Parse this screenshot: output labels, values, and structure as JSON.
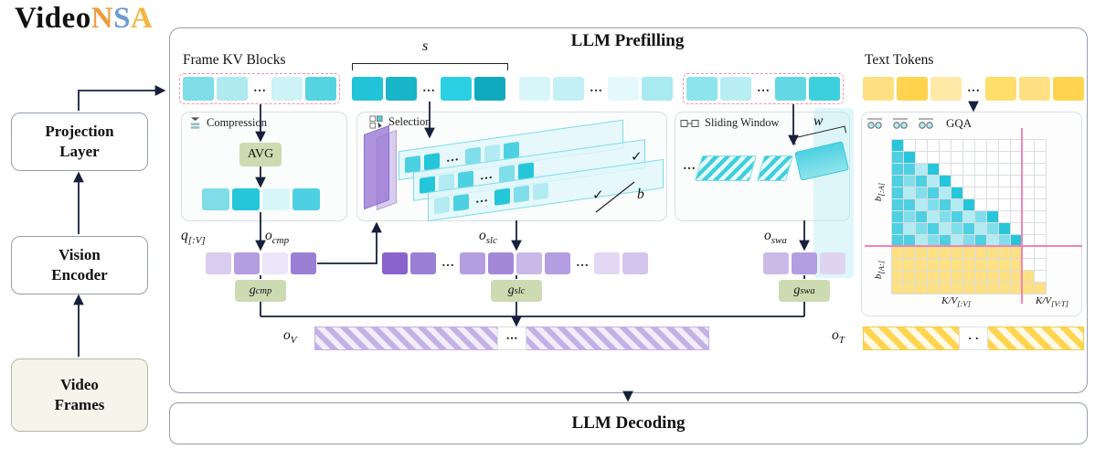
{
  "logo": {
    "prefix": "Video",
    "n": "N",
    "s": "S",
    "a": "A"
  },
  "colors": {
    "navy": "#16203a",
    "teal_dark": "#26c6da",
    "teal_mid": "#4dd0e1",
    "teal_light": "#80deea",
    "teal_pale": "#b2ebf2",
    "yellow": "#ffe082",
    "yellow_dark": "#ffd54f",
    "purple": "#b39ddb",
    "purple_dark": "#7e57c2",
    "sage": "#ccdbb2",
    "pink": "#f283b8",
    "pink_dash": "#f48fb1",
    "logo_n": "#ef9b3c",
    "logo_s": "#6f9bd1",
    "logo_a": "#f4b43e"
  },
  "pipeline": {
    "projection": [
      "Projection",
      "Layer"
    ],
    "vision": [
      "Vision",
      "Encoder"
    ],
    "frames": [
      "Video",
      "Frames"
    ]
  },
  "prefilling": {
    "title": "LLM Prefilling",
    "frame_kv_label": "Frame KV Blocks",
    "text_tokens_label": "Text Tokens",
    "s_label": "s",
    "dots": "…"
  },
  "token_rows": {
    "frame_groups": [
      [
        "#7fdde8",
        "#aeeaf0",
        "…",
        "#cdf3f6",
        "#55d3e0"
      ],
      [
        "#22c3d6",
        "#18b4c8",
        "…",
        "#2bd0e2",
        "#10a9bd"
      ],
      [
        "#d8f6f9",
        "#c2f0f4",
        "…",
        "#e4f9fb",
        "#a8eaf0"
      ],
      [
        "#8ee4ec",
        "#b8eef3",
        "…",
        "#63d8e4",
        "#3ccfdd"
      ]
    ],
    "text_tokens": [
      "#ffe082",
      "#ffd34d",
      "#ffe9a8",
      "…",
      "#ffde6b",
      "#ffe082",
      "#ffd34d"
    ],
    "mini": [
      "#7fdde8",
      "#26c6da",
      "#d8f6f9",
      "#4dd0e1"
    ]
  },
  "branches": {
    "compression": {
      "label": "Compression",
      "avg": "AVG"
    },
    "selection": {
      "label": "Selection",
      "check": "✓",
      "b_label": "b"
    },
    "sliding": {
      "label": "Sliding Window",
      "w_label": "w"
    },
    "gqa": {
      "label": "GQA",
      "matrix": {
        "cols": 13,
        "rows": 13,
        "teal_rows": 9,
        "pink_col": 11
      },
      "row_label_top": {
        "base": "b",
        "sub": "[:A]"
      },
      "row_label_bottom": {
        "base": "b",
        "sub": "[A:]"
      },
      "col_label_left": {
        "base": "K/V",
        "sub": "[:V]"
      },
      "col_label_right": {
        "base": "K/V",
        "sub": "[V:T]"
      }
    }
  },
  "outputs": {
    "q": {
      "base": "q",
      "sub": "[:V]"
    },
    "o_cmp": {
      "base": "o",
      "sub": "cmp"
    },
    "o_slc": {
      "base": "o",
      "sub": "slc"
    },
    "o_swa": {
      "base": "o",
      "sub": "swa"
    },
    "g_cmp": {
      "base": "g",
      "sub": "cmp"
    },
    "g_slc": {
      "base": "g",
      "sub": "slc"
    },
    "g_swa": {
      "base": "g",
      "sub": "swa"
    },
    "rows": {
      "cmp": [
        "#d9ccee",
        "#b49de0",
        "#ece4f8",
        "#9a7fd4"
      ],
      "slc": [
        "#8a63cc",
        "#9a7fd4",
        "…",
        "#b49de0",
        "#a488d8",
        "#c9b8e8",
        "#b49de0",
        "…",
        "#e2d8f4",
        "#d3c5ec"
      ],
      "swa": [
        "#cbbae8",
        "#b49de0",
        "#dfd3f2"
      ]
    },
    "o_v": {
      "base": "o",
      "sub": "V"
    },
    "o_t": {
      "base": "o",
      "sub": "T"
    },
    "ov_dots": "⋯",
    "ot_dots": "· ·"
  },
  "decoding": {
    "title": "LLM Decoding"
  }
}
